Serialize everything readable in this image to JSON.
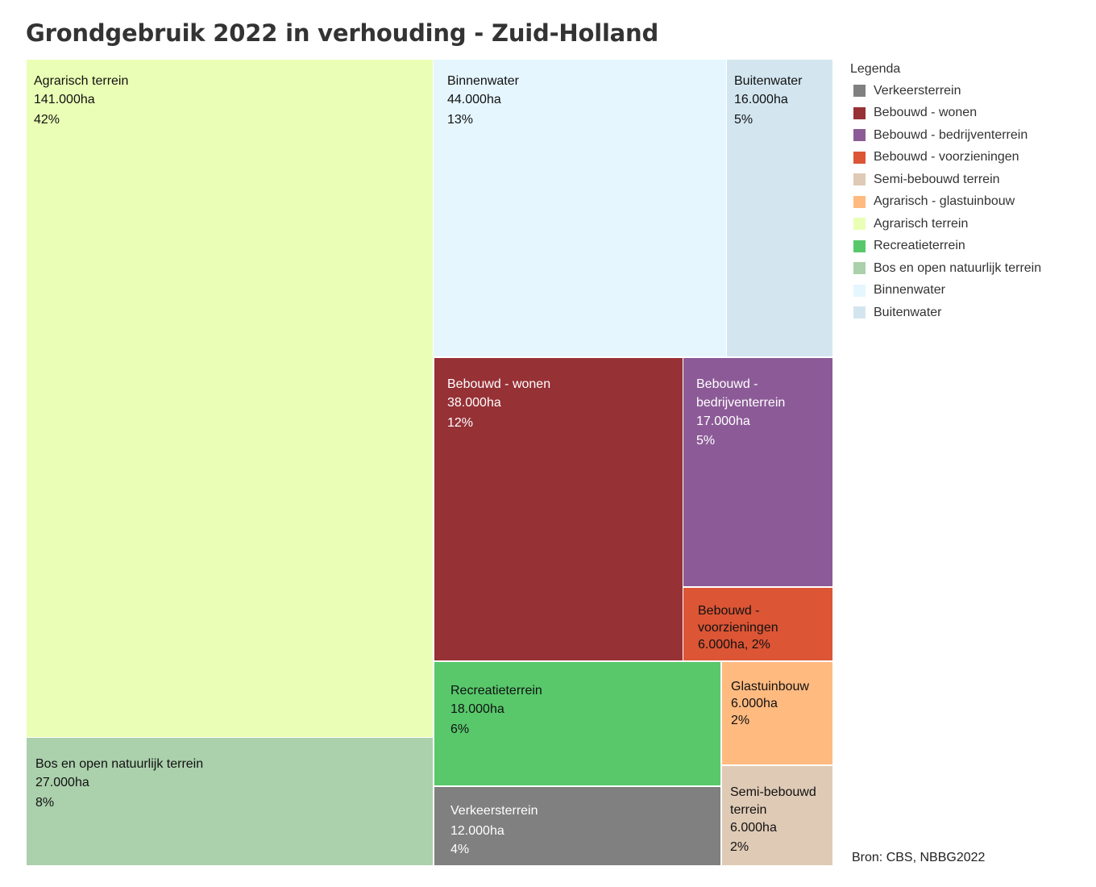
{
  "title": "Grondgebruik 2022 in verhouding - Zuid-Holland",
  "source": "Bron: CBS, NBBG2022",
  "legend": {
    "title": "Legenda",
    "items": [
      {
        "label": "Verkeersterrein",
        "color": "#808080"
      },
      {
        "label": "Bebouwd - wonen",
        "color": "#963136"
      },
      {
        "label": "Bebouwd - bedrijventerrein",
        "color": "#8c5b97"
      },
      {
        "label": "Bebouwd - voorzieningen",
        "color": "#dc5535"
      },
      {
        "label": "Semi-bebouwd terrein",
        "color": "#dfcab5"
      },
      {
        "label": "Agrarisch - glastuinbouw",
        "color": "#ffba80"
      },
      {
        "label": "Agrarisch terrein",
        "color": "#eaffb5"
      },
      {
        "label": "Recreatieterrein",
        "color": "#58c86b"
      },
      {
        "label": "Bos en open natuurlijk terrein",
        "color": "#abd0ac"
      },
      {
        "label": "Binnenwater",
        "color": "#e5f6ff"
      },
      {
        "label": "Buitenwater",
        "color": "#d3e6f0"
      }
    ]
  },
  "chart_data": {
    "type": "treemap",
    "unit": "ha",
    "items": [
      {
        "name": "Agrarisch terrein",
        "value": 141000,
        "value_label": "141.000ha",
        "percent_label": "42%",
        "color": "#eaffb5",
        "text_color": "#111111"
      },
      {
        "name": "Bos en open natuurlijk terrein",
        "value": 27000,
        "value_label": "27.000ha",
        "percent_label": "8%",
        "color": "#abd0ac",
        "text_color": "#111111"
      },
      {
        "name": "Binnenwater",
        "value": 44000,
        "value_label": "44.000ha",
        "percent_label": "13%",
        "color": "#e5f6ff",
        "text_color": "#111111"
      },
      {
        "name": "Buitenwater",
        "value": 16000,
        "value_label": "16.000ha",
        "percent_label": "5%",
        "color": "#d3e6f0",
        "text_color": "#111111"
      },
      {
        "name": "Bebouwd - wonen",
        "value": 38000,
        "value_label": "38.000ha",
        "percent_label": "12%",
        "color": "#963136",
        "text_color": "#ffffff"
      },
      {
        "name": "Bebouwd - bedrijventerrein",
        "display_lines": [
          "Bebouwd -",
          "bedrijventerrein"
        ],
        "value": 17000,
        "value_label": "17.000ha",
        "percent_label": "5%",
        "color": "#8c5b97",
        "text_color": "#ffffff"
      },
      {
        "name": "Bebouwd - voorzieningen",
        "display_lines": [
          "Bebouwd -",
          "voorzieningen"
        ],
        "value": 6000,
        "value_label": "6.000ha,  2%",
        "percent_label": "",
        "color": "#dc5535",
        "text_color": "#111111"
      },
      {
        "name": "Recreatieterrein",
        "value": 18000,
        "value_label": "18.000ha",
        "percent_label": "6%",
        "color": "#58c86b",
        "text_color": "#111111"
      },
      {
        "name": "Glastuinbouw",
        "value": 6000,
        "value_label": "6.000ha",
        "percent_label": "2%",
        "color": "#ffba80",
        "text_color": "#111111"
      },
      {
        "name": "Verkeersterrein",
        "value": 12000,
        "value_label": "12.000ha",
        "percent_label": "4%",
        "color": "#808080",
        "text_color": "#ffffff"
      },
      {
        "name": "Semi-bebouwd terrein",
        "display_lines": [
          "Semi-bebouwd",
          "terrein"
        ],
        "value": 6000,
        "value_label": "6.000ha",
        "percent_label": "2%",
        "color": "#dfcab5",
        "text_color": "#111111"
      }
    ]
  }
}
